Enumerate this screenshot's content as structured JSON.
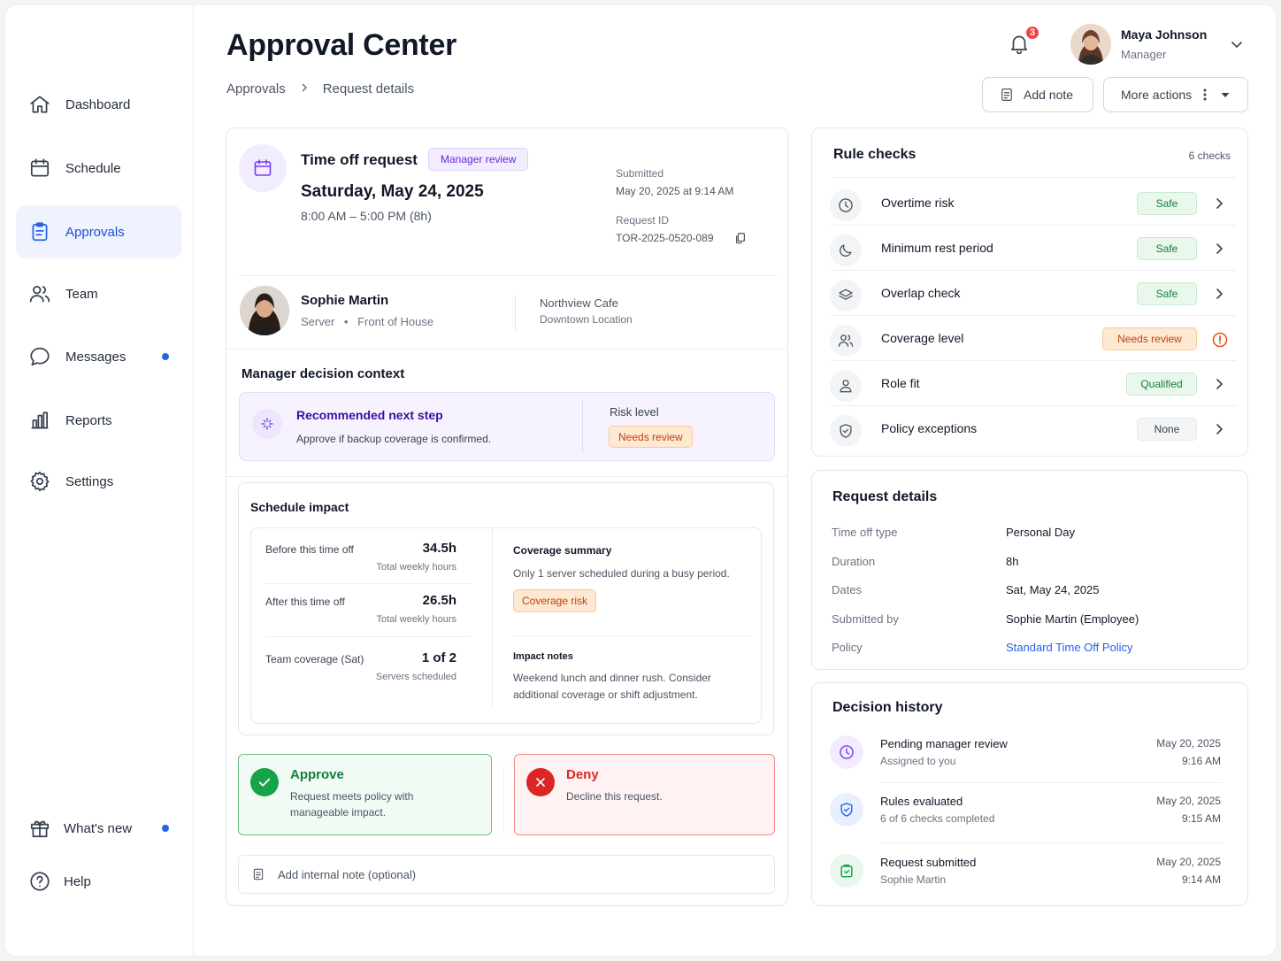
{
  "nav": {
    "items": [
      {
        "label": "Dashboard"
      },
      {
        "label": "Schedule"
      },
      {
        "label": "Approvals"
      },
      {
        "label": "Team"
      },
      {
        "label": "Messages"
      },
      {
        "label": "Reports"
      },
      {
        "label": "Settings"
      }
    ],
    "bottom": [
      {
        "label": "What's new"
      },
      {
        "label": "Help"
      }
    ]
  },
  "header": {
    "title": "Approval Center",
    "breadcrumb": [
      "Approvals",
      "Request details"
    ],
    "notifications_count": "3",
    "user_name": "Maya Johnson",
    "user_role": "Manager",
    "add_note_label": "Add note",
    "more_actions_label": "More actions"
  },
  "request": {
    "type_label": "Time off request",
    "status_badge": "Manager review",
    "date": "Saturday, May 24, 2025",
    "time_range": "8:00 AM – 5:00 PM (8h)",
    "submitted_label": "Submitted",
    "submitted_value": "May 20, 2025 at 9:14 AM",
    "request_id_label": "Request ID",
    "request_id_value": "TOR-2025-0520-089",
    "employee_name": "Sophie Martin",
    "employee_role": "Server",
    "employee_dept": "Front of House",
    "location_name": "Northview Cafe",
    "location_sub": "Downtown Location"
  },
  "decision_context": {
    "heading": "Manager decision context",
    "rec_title": "Recommended next step",
    "rec_text": "Approve if backup coverage is confirmed.",
    "risk_label": "Risk level",
    "risk_value": "Needs review"
  },
  "schedule_impact": {
    "heading": "Schedule impact",
    "before_label": "Before this time off",
    "before_value": "34.5h",
    "before_sub": "Total weekly hours",
    "after_label": "After this time off",
    "after_value": "26.5h",
    "after_sub": "Total weekly hours",
    "coverage_label": "Team coverage (Sat)",
    "coverage_value": "1 of 2",
    "coverage_sub": "Servers scheduled",
    "summary_title": "Coverage summary",
    "summary_text": "Only 1 server scheduled during a busy period.",
    "summary_badge": "Coverage risk",
    "notes_title": "Impact notes",
    "notes_text_1": "Weekend lunch and dinner rush. Consider",
    "notes_text_2": "additional coverage or shift adjustment."
  },
  "actions": {
    "approve_title": "Approve",
    "approve_text_1": "Request meets policy with",
    "approve_text_2": "manageable impact.",
    "deny_title": "Deny",
    "deny_text": "Decline this request.",
    "note_placeholder": "Add internal note (optional)"
  },
  "rule_checks": {
    "heading": "Rule checks",
    "count": "6 checks",
    "items": [
      {
        "label": "Overtime risk",
        "status": "Safe",
        "icon": "clock-icon"
      },
      {
        "label": "Minimum rest period",
        "status": "Safe",
        "icon": "moon-icon"
      },
      {
        "label": "Overlap check",
        "status": "Safe",
        "icon": "layers-icon"
      },
      {
        "label": "Coverage level",
        "status": "Needs review",
        "icon": "users-icon"
      },
      {
        "label": "Role fit",
        "status": "Qualified",
        "icon": "user-icon"
      },
      {
        "label": "Policy exceptions",
        "status": "None",
        "icon": "shield-icon"
      }
    ]
  },
  "request_details": {
    "heading": "Request details",
    "rows": [
      {
        "label": "Time off type",
        "value": "Personal Day"
      },
      {
        "label": "Duration",
        "value": "8h"
      },
      {
        "label": "Dates",
        "value": "Sat, May 24, 2025"
      },
      {
        "label": "Submitted by",
        "value": "Sophie Martin (Employee)"
      },
      {
        "label": "Policy",
        "value": "Standard Time Off Policy"
      }
    ]
  },
  "decision_history": {
    "heading": "Decision history",
    "items": [
      {
        "title": "Pending manager review",
        "sub": "Assigned to you",
        "date": "May 20, 2025",
        "time": "9:16 AM"
      },
      {
        "title": "Rules evaluated",
        "sub": "6 of 6 checks completed",
        "date": "May 20, 2025",
        "time": "9:15 AM"
      },
      {
        "title": "Request submitted",
        "sub": "Sophie Martin",
        "date": "May 20, 2025",
        "time": "9:14 AM"
      }
    ]
  },
  "colors": {
    "accent": "#2563eb",
    "safe": "#15803d",
    "warning": "#c2410c",
    "deny": "#dc2626",
    "approve": "#16a34a"
  }
}
